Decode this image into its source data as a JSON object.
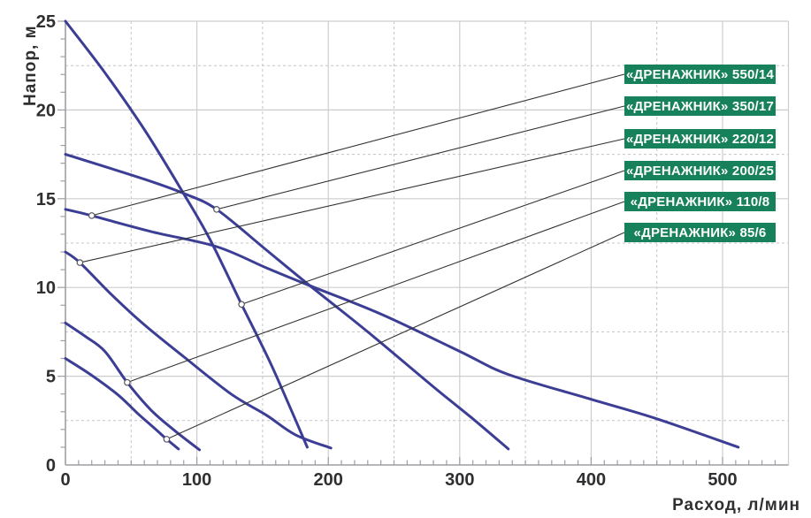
{
  "chart_data": {
    "type": "line",
    "title": "",
    "xlabel": "Расход, л/мин",
    "ylabel": "Напор, м",
    "xlim": [
      0,
      550
    ],
    "ylim": [
      0,
      25
    ],
    "x_major_ticks": [
      0,
      100,
      200,
      300,
      400,
      500
    ],
    "y_major_ticks": [
      0,
      5,
      10,
      15,
      20,
      25
    ],
    "x_minor_tick_step": 10,
    "y_minor_tick_step": 1,
    "x_major_gridlines": [
      100,
      200,
      300,
      400,
      500
    ],
    "x_minor_gridlines": [
      50,
      150,
      250,
      350,
      450
    ],
    "y_major_gridlines": [
      5,
      10,
      15,
      20,
      25
    ],
    "y_minor_gridlines": [
      2.5,
      7.5,
      12.5,
      17.5,
      22.5
    ],
    "grid": true,
    "legend_position": "right-side-callout-labels",
    "series": [
      {
        "name": "«ДРЕНАЖНИК» 550/14",
        "model": "550/14",
        "label_anchor_point": {
          "flow": 20,
          "head": 14.05
        },
        "points": [
          [
            0,
            14.4
          ],
          [
            20,
            14.05
          ],
          [
            65,
            13.15
          ],
          [
            115,
            12.3
          ],
          [
            153,
            11.1
          ],
          [
            186,
            10.1
          ],
          [
            240,
            8.5
          ],
          [
            300,
            6.4
          ],
          [
            337,
            5.1
          ],
          [
            400,
            3.7
          ],
          [
            450,
            2.6
          ],
          [
            512,
            1.0
          ]
        ]
      },
      {
        "name": "«ДРЕНАЖНИК» 350/17",
        "model": "350/17",
        "label_anchor_point": {
          "flow": 115,
          "head": 14.4
        },
        "points": [
          [
            0,
            17.5
          ],
          [
            60,
            16.1
          ],
          [
            90,
            15.3
          ],
          [
            115,
            14.4
          ],
          [
            153,
            12.1
          ],
          [
            186,
            10.1
          ],
          [
            230,
            7.5
          ],
          [
            280,
            4.4
          ],
          [
            310,
            2.6
          ],
          [
            337,
            0.9
          ]
        ]
      },
      {
        "name": "«ДРЕНАЖНИК» 220/12",
        "model": "220/12",
        "label_anchor_point": {
          "flow": 11,
          "head": 11.4
        },
        "points": [
          [
            0,
            12.0
          ],
          [
            11,
            11.4
          ],
          [
            35,
            9.6
          ],
          [
            60,
            7.9
          ],
          [
            90,
            6.1
          ],
          [
            126,
            4.0
          ],
          [
            153,
            2.8
          ],
          [
            175,
            1.7
          ],
          [
            202,
            0.95
          ]
        ]
      },
      {
        "name": "«ДРЕНАЖНИК» 200/25",
        "model": "200/25",
        "label_anchor_point": {
          "flow": 134,
          "head": 9.05
        },
        "points": [
          [
            0,
            25.0
          ],
          [
            30,
            22.1
          ],
          [
            60,
            18.9
          ],
          [
            89,
            15.4
          ],
          [
            110,
            12.7
          ],
          [
            134,
            9.05
          ],
          [
            155,
            5.9
          ],
          [
            170,
            3.4
          ],
          [
            184,
            1.0
          ]
        ]
      },
      {
        "name": "«ДРЕНАЖНИК» 110/8",
        "model": "110/8",
        "label_anchor_point": {
          "flow": 47,
          "head": 4.65
        },
        "points": [
          [
            0,
            8.0
          ],
          [
            15,
            7.25
          ],
          [
            30,
            6.4
          ],
          [
            47,
            4.65
          ],
          [
            65,
            3.1
          ],
          [
            82,
            2.0
          ],
          [
            102,
            0.85
          ]
        ]
      },
      {
        "name": "«ДРЕНАЖНИК» 85/6",
        "model": "85/6",
        "label_anchor_point": {
          "flow": 77,
          "head": 1.45
        },
        "points": [
          [
            0,
            6.0
          ],
          [
            20,
            5.05
          ],
          [
            40,
            3.95
          ],
          [
            55,
            2.9
          ],
          [
            68,
            2.05
          ],
          [
            77,
            1.45
          ],
          [
            86,
            0.9
          ]
        ]
      }
    ]
  },
  "colors": {
    "background": "#ffffff",
    "curve": "#3b3e94",
    "leader_line": "#333333",
    "marker_fill": "#ffffff",
    "marker_stroke": "#55555e",
    "grid_major": "#cdcdcd",
    "grid_minor": "#c4c4c4",
    "axis": "#9e9ea4",
    "text": "#2f2f31",
    "label_bg": "#16815a",
    "label_text": "#ffffff"
  }
}
